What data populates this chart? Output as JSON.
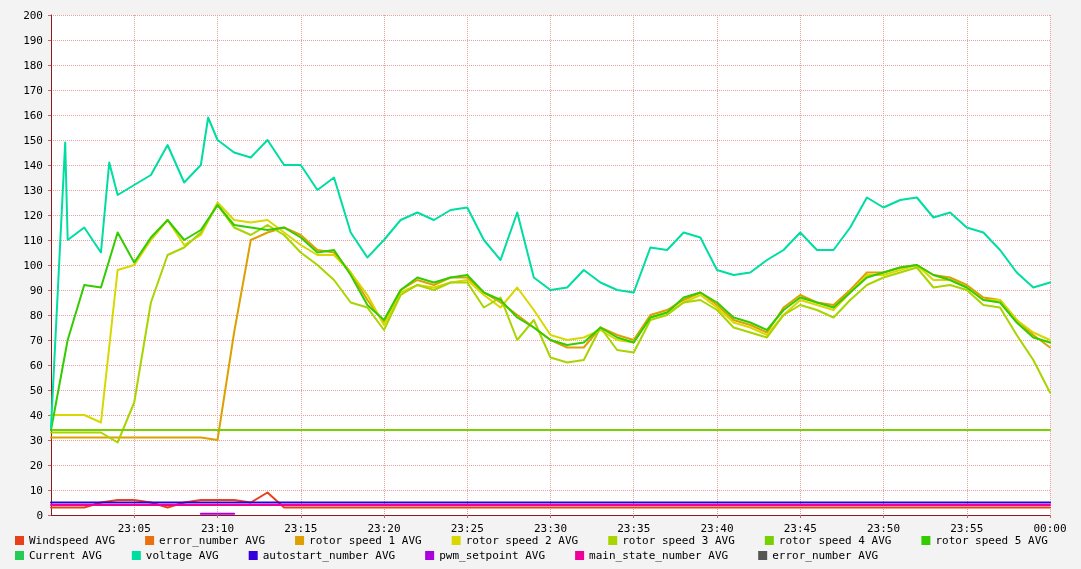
{
  "chart_data": {
    "type": "line",
    "x": [
      23,
      23.0167,
      23.0333,
      23.05,
      23.0667,
      23.0833,
      23.1,
      23.1167,
      23.1333,
      23.15,
      23.1667,
      23.1833,
      23.2,
      23.2167,
      23.2333,
      23.25,
      23.2667,
      23.2833,
      23.3,
      23.3167,
      23.3333,
      23.35,
      23.3667,
      23.3833,
      23.4,
      23.4167,
      23.4333,
      23.45,
      23.4667,
      23.4833,
      23.5,
      23.5167,
      23.5333,
      23.55,
      23.5667,
      23.5833,
      23.6,
      23.6167,
      23.6333,
      23.65,
      23.6667,
      23.6833,
      23.7,
      23.7167,
      23.7333,
      23.75,
      23.7667,
      23.7833,
      23.8,
      23.8167,
      23.8333,
      23.85,
      23.8667,
      23.8833,
      23.9,
      23.9167,
      23.9333,
      23.95,
      23.9667,
      23.9833,
      24
    ],
    "xlim": [
      23,
      24
    ],
    "xticks": [
      {
        "value": 23.0833,
        "label": "23:05"
      },
      {
        "value": 23.1667,
        "label": "23:10"
      },
      {
        "value": 23.25,
        "label": "23:15"
      },
      {
        "value": 23.3333,
        "label": "23:20"
      },
      {
        "value": 23.4167,
        "label": "23:25"
      },
      {
        "value": 23.5,
        "label": "23:30"
      },
      {
        "value": 23.5833,
        "label": "23:35"
      },
      {
        "value": 23.6667,
        "label": "23:40"
      },
      {
        "value": 23.75,
        "label": "23:45"
      },
      {
        "value": 23.8333,
        "label": "23:50"
      },
      {
        "value": 23.9167,
        "label": "23:55"
      },
      {
        "value": 24,
        "label": "00:00"
      }
    ],
    "ylim": [
      0,
      200
    ],
    "yticks": [
      0,
      10,
      20,
      30,
      40,
      50,
      60,
      70,
      80,
      90,
      100,
      110,
      120,
      130,
      140,
      150,
      160,
      170,
      180,
      190,
      200
    ],
    "grid": true,
    "legend": "bottom",
    "marker": "none",
    "line_style": "solid",
    "series": [
      {
        "name": "Windspeed AVG",
        "color": "#e8401a",
        "values": [
          3,
          3,
          3,
          5,
          6,
          6,
          5,
          3,
          5,
          6,
          6,
          6,
          5,
          9,
          3,
          3,
          3,
          3,
          3,
          3,
          3,
          3,
          3,
          3,
          3,
          3,
          3,
          3,
          3,
          3,
          3,
          3,
          3,
          3,
          3,
          3,
          3,
          3,
          3,
          3,
          3,
          3,
          3,
          3,
          3,
          3,
          3,
          3,
          3,
          3,
          3,
          3,
          3,
          3,
          3,
          3,
          3,
          3,
          3,
          3,
          3
        ]
      },
      {
        "name": "error_number AVG",
        "color": "#e87010",
        "values": [
          null,
          null,
          null,
          null,
          null,
          null,
          null,
          null,
          null,
          null,
          null,
          null,
          null,
          null,
          null,
          null,
          null,
          null,
          null,
          null,
          null,
          null,
          null,
          null,
          null,
          null,
          null,
          null,
          null,
          null,
          null,
          null,
          null,
          null,
          null,
          null,
          null,
          null,
          null,
          null,
          null,
          null,
          null,
          null,
          null,
          null,
          null,
          null,
          null,
          null,
          null,
          null,
          null,
          null,
          null,
          null,
          null,
          null,
          null,
          null,
          null
        ]
      },
      {
        "name": "rotor speed 1 AVG",
        "color": "#dca000",
        "values": [
          31,
          31,
          31,
          31,
          31,
          31,
          31,
          31,
          31,
          31,
          30,
          73,
          110,
          113,
          115,
          112,
          106,
          105,
          97,
          86,
          77,
          90,
          94,
          92,
          95,
          95,
          89,
          85,
          80,
          75,
          70,
          67,
          67,
          75,
          72,
          70,
          80,
          82,
          86,
          89,
          84,
          78,
          76,
          73,
          83,
          88,
          85,
          84,
          90,
          97,
          97,
          99,
          100,
          96,
          95,
          92,
          87,
          86,
          78,
          72,
          67
        ]
      },
      {
        "name": "rotor speed 2 AVG",
        "color": "#d8d800",
        "values": [
          40,
          40,
          40,
          37,
          98,
          100,
          110,
          118,
          108,
          112,
          125,
          118,
          117,
          118,
          113,
          108,
          104,
          104,
          97,
          88,
          76,
          89,
          92,
          91,
          93,
          94,
          88,
          83,
          91,
          82,
          72,
          70,
          71,
          74,
          70,
          69,
          79,
          81,
          85,
          88,
          83,
          77,
          75,
          72,
          80,
          86,
          84,
          82,
          89,
          96,
          96,
          98,
          100,
          94,
          94,
          91,
          86,
          86,
          78,
          73,
          70
        ]
      },
      {
        "name": "rotor speed 3 AVG",
        "color": "#a8d400",
        "values": [
          33,
          33,
          33,
          33,
          29,
          45,
          85,
          104,
          107,
          113,
          124,
          115,
          112,
          116,
          112,
          105,
          100,
          94,
          85,
          83,
          74,
          88,
          92,
          90,
          93,
          93,
          83,
          87,
          70,
          78,
          63,
          61,
          62,
          75,
          66,
          65,
          78,
          80,
          85,
          86,
          82,
          75,
          73,
          71,
          80,
          84,
          82,
          79,
          86,
          92,
          95,
          97,
          99,
          91,
          92,
          90,
          84,
          83,
          72,
          62,
          49
        ]
      },
      {
        "name": "rotor speed 4 AVG",
        "color": "#77d000",
        "values": [
          34,
          34,
          34,
          34,
          34,
          34,
          34,
          34,
          34,
          34,
          34,
          34,
          34,
          34,
          34,
          34,
          34,
          34,
          34,
          34,
          34,
          34,
          34,
          34,
          34,
          34,
          34,
          34,
          34,
          34,
          34,
          34,
          34,
          34,
          34,
          34,
          34,
          34,
          34,
          34,
          34,
          34,
          34,
          34,
          34,
          34,
          34,
          34,
          34,
          34,
          34,
          34,
          34,
          34,
          34,
          34,
          34,
          34,
          34,
          34,
          34
        ]
      },
      {
        "name": "rotor speed 5 AVG",
        "color": "#33cc00",
        "values": [
          34,
          70,
          92,
          91,
          113,
          101,
          111,
          118,
          110,
          114,
          124,
          116,
          115,
          114,
          115,
          111,
          105,
          106,
          96,
          84,
          78,
          90,
          95,
          93,
          95,
          96,
          89,
          86,
          79,
          75,
          70,
          68,
          69,
          75,
          71,
          69,
          79,
          81,
          87,
          89,
          85,
          79,
          77,
          74,
          82,
          87,
          85,
          83,
          89,
          95,
          97,
          99,
          100,
          96,
          94,
          91,
          86,
          85,
          77,
          71,
          69
        ]
      },
      {
        "name": "Current AVG",
        "color": "#22cc55",
        "values": [
          null,
          null,
          null,
          null,
          null,
          null,
          null,
          null,
          null,
          null,
          null,
          null,
          null,
          null,
          null,
          null,
          null,
          null,
          null,
          null,
          null,
          null,
          null,
          null,
          null,
          null,
          null,
          null,
          null,
          null,
          null,
          null,
          null,
          null,
          null,
          null,
          null,
          null,
          null,
          null,
          null,
          null,
          null,
          null,
          null,
          null,
          null,
          null,
          null,
          null,
          null,
          null,
          null,
          null,
          null,
          null,
          null,
          null,
          null,
          null,
          null
        ]
      },
      {
        "name": "voltage AVG",
        "color": "#00dda0",
        "x": [
          23,
          23.0142,
          23.0167,
          23.0333,
          23.05,
          23.0583,
          23.0667,
          23.0833,
          23.1,
          23.1167,
          23.1333,
          23.15,
          23.1573,
          23.1667,
          23.1833,
          23.2,
          23.2167,
          23.2333,
          23.25,
          23.2667,
          23.2833,
          23.3,
          23.3167,
          23.3333,
          23.35,
          23.3667,
          23.3833,
          23.4,
          23.4167,
          23.4333,
          23.45,
          23.4667,
          23.4833,
          23.5,
          23.5167,
          23.5333,
          23.55,
          23.5667,
          23.5833,
          23.6,
          23.6167,
          23.6333,
          23.65,
          23.6667,
          23.6833,
          23.7,
          23.7167,
          23.7333,
          23.75,
          23.7667,
          23.7833,
          23.8,
          23.8167,
          23.8333,
          23.85,
          23.8667,
          23.8833,
          23.9,
          23.9167,
          23.9333,
          23.95,
          23.9667,
          23.9833,
          24
        ],
        "values": [
          35,
          149,
          110,
          115,
          105,
          141,
          128,
          132,
          136,
          148,
          133,
          140,
          159,
          150,
          145,
          143,
          150,
          140,
          140,
          130,
          135,
          113,
          103,
          110,
          118,
          121,
          118,
          122,
          123,
          110,
          102,
          121,
          95,
          90,
          91,
          98,
          93,
          90,
          89,
          107,
          106,
          113,
          111,
          98,
          96,
          97,
          102,
          106,
          113,
          106,
          106,
          115,
          127,
          123,
          126,
          127,
          119,
          121,
          115,
          113,
          106,
          97,
          91,
          93
        ]
      },
      {
        "name": "autostart_number AVG",
        "color": "#3300dd",
        "values": [
          5,
          5,
          5,
          5,
          5,
          5,
          5,
          5,
          5,
          5,
          5,
          5,
          5,
          5,
          5,
          5,
          5,
          5,
          5,
          5,
          5,
          5,
          5,
          5,
          5,
          5,
          5,
          5,
          5,
          5,
          5,
          5,
          5,
          5,
          5,
          5,
          5,
          5,
          5,
          5,
          5,
          5,
          5,
          5,
          5,
          5,
          5,
          5,
          5,
          5,
          5,
          5,
          5,
          5,
          5,
          5,
          5,
          5,
          5,
          5,
          5
        ]
      },
      {
        "name": "pwm_setpoint AVG",
        "color": "#aa00dd",
        "values": [
          null,
          null,
          null,
          null,
          null,
          null,
          null,
          null,
          null,
          0.5,
          0.5,
          0.5,
          null,
          null,
          null,
          null,
          null,
          null,
          null,
          null,
          null,
          null,
          null,
          null,
          null,
          null,
          null,
          null,
          null,
          null,
          null,
          null,
          null,
          null,
          null,
          null,
          null,
          null,
          null,
          null,
          null,
          null,
          null,
          null,
          null,
          null,
          null,
          null,
          null,
          null,
          null,
          null,
          null,
          null,
          null,
          null,
          null,
          null,
          null,
          null,
          null
        ]
      },
      {
        "name": "main_state_number AVG",
        "color": "#ee0099",
        "values": [
          4,
          4,
          4,
          4,
          4,
          4,
          4,
          4,
          4,
          4,
          4,
          4,
          4,
          4,
          4,
          4,
          4,
          4,
          4,
          4,
          4,
          4,
          4,
          4,
          4,
          4,
          4,
          4,
          4,
          4,
          4,
          4,
          4,
          4,
          4,
          4,
          4,
          4,
          4,
          4,
          4,
          4,
          4,
          4,
          4,
          4,
          4,
          4,
          4,
          4,
          4,
          4,
          4,
          4,
          4,
          4,
          4,
          4,
          4,
          4,
          4
        ]
      },
      {
        "name": "error_number AVG",
        "color": "#555555",
        "values": [
          null,
          null,
          null,
          null,
          null,
          null,
          null,
          null,
          null,
          null,
          null,
          null,
          null,
          null,
          null,
          null,
          null,
          null,
          null,
          null,
          null,
          null,
          null,
          null,
          null,
          null,
          null,
          null,
          null,
          null,
          null,
          null,
          null,
          null,
          null,
          null,
          null,
          null,
          null,
          null,
          null,
          null,
          null,
          null,
          null,
          null,
          null,
          null,
          null,
          null,
          null,
          null,
          null,
          null,
          null,
          null,
          null,
          null,
          null,
          null,
          null
        ]
      }
    ]
  }
}
